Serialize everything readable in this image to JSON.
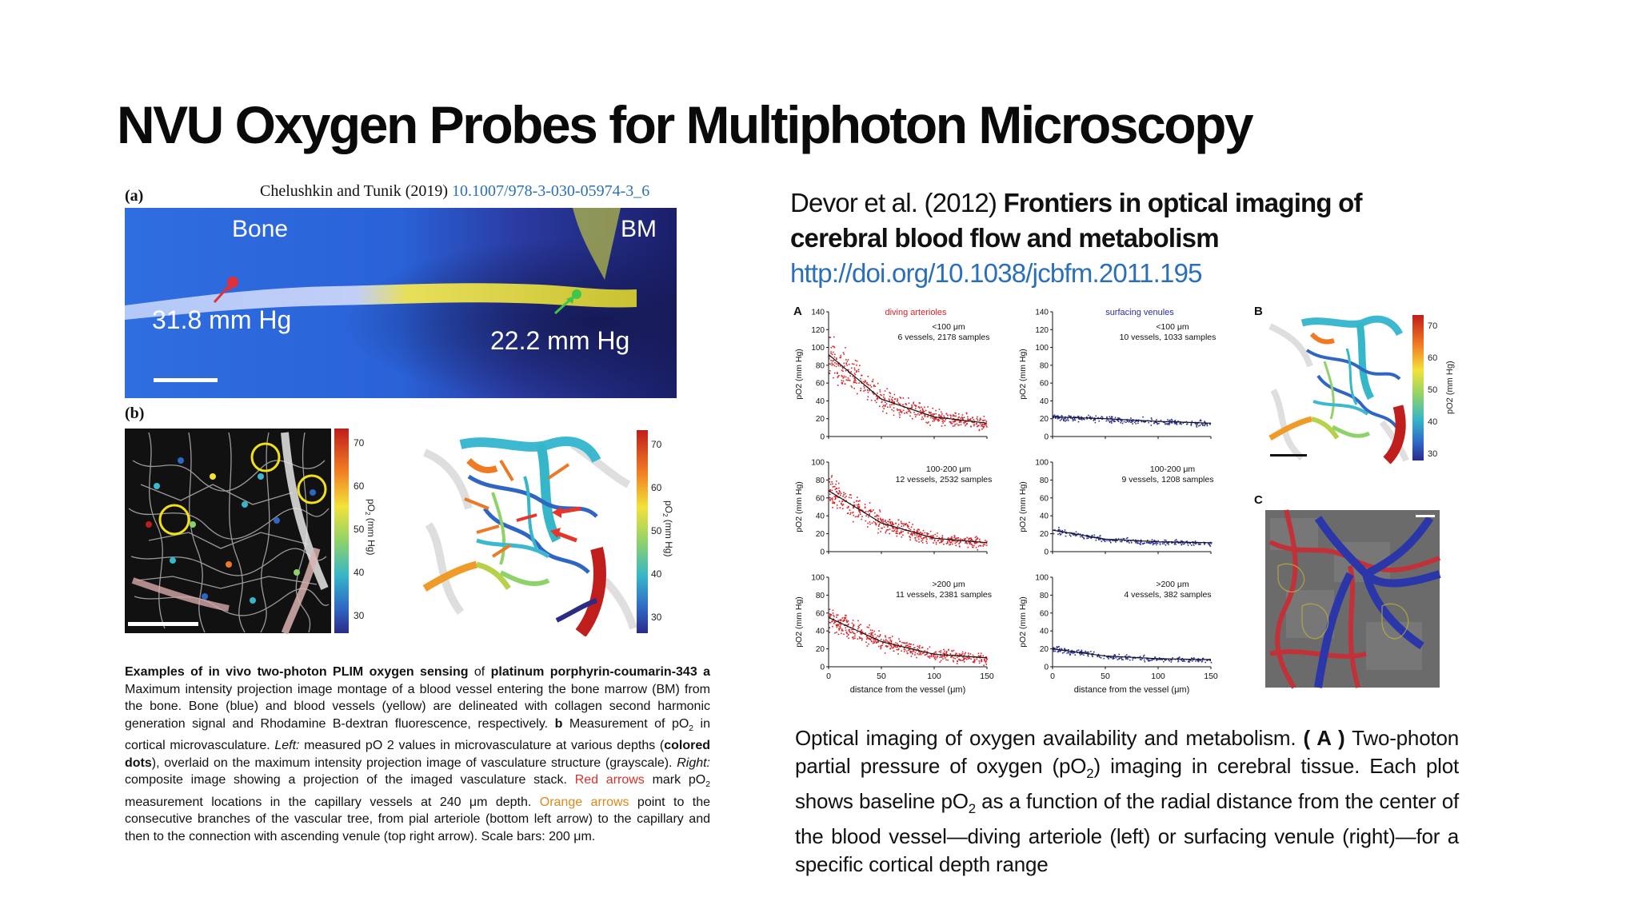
{
  "slide": {
    "title": "NVU Oxygen Probes for Multiphoton Microscopy"
  },
  "left_figure": {
    "citation_text": "Chelushkin and Tunik (2019) ",
    "citation_doi": "10.1007/978-3-030-05974-3_6",
    "panel_a_letter": "(a)",
    "panel_b_letter": "(b)",
    "panel_a": {
      "label_bone": "Bone",
      "label_bm": "BM",
      "value_red": "31.8 mm Hg",
      "value_green": "22.2 mm Hg"
    },
    "colorbar_ticks": [
      "70",
      "60",
      "50",
      "40",
      "30"
    ],
    "colorbar_label": "pO",
    "colorbar_label_sub": "2",
    "colorbar_label_unit": " (mm Hg)",
    "colors": {
      "red_dot": "#e0303a",
      "green_dot": "#3ec64a",
      "yellow_circle": "#f2e11a",
      "orange_arrow": "#ea7a26",
      "red_arrow": "#e6352b"
    }
  },
  "left_caption": {
    "bold_1": "Examples of in vivo two-photon PLIM oxygen sensing",
    "t1": " of ",
    "bold_2": "platinum porphyrin-coumarin-343",
    "t2": " ",
    "bold_a": "a",
    "t3": " Maximum intensity projection image montage of a blood vessel entering the bone marrow (BM) from the bone. Bone (blue) and blood vessels (yellow) are delineated with collagen second harmonic generation signal and Rhodamine B-dextran fluorescence, respectively. ",
    "bold_b": "b",
    "t4": " Measurement of pO",
    "t4_sub": "2",
    "t5": " in cortical microvasculature. ",
    "italic_left": "Left:",
    "t6": " measured pO 2 values in microvasculature at various depths (",
    "bold_dots": "colored dots",
    "t7": "), overlaid on the maximum intensity projection image of vasculature structure (grayscale). ",
    "italic_right": "Right:",
    "t8": " composite image showing a projection of the imaged vasculature stack. ",
    "red_arrows": "Red arrows",
    "t9": " mark pO",
    "t9_sub": "2",
    "t10": " measurement locations in the capillary vessels at 240 μm depth. ",
    "orange_arrows": "Orange arrows",
    "t11": " point to the consecutive branches of the vascular tree, from pial arteriole (bottom left arrow) to the capillary and then to the connection with ascending venule (top right arrow). Scale bars: 200 μm."
  },
  "right_citation": {
    "authors": "Devor et al. (2012) ",
    "title": "Frontiers in optical imaging of cerebral blood flow and metabolism",
    "link": "http://doi.org/10.1038/jcbfm.2011.195"
  },
  "right_figure": {
    "panel_a_letter": "A",
    "panel_b_letter": "B",
    "panel_c_letter": "C",
    "col_title_left": "diving arterioles",
    "col_title_right": "surfacing venules",
    "ylabel": "pO2 (mm Hg)",
    "xlabel": "distance from the vessel (μm)",
    "x_ticks": [
      "0",
      "50",
      "100",
      "150"
    ],
    "row1_y_ticks": [
      "0",
      "20",
      "40",
      "60",
      "80",
      "100",
      "120",
      "140"
    ],
    "rows23_y_ticks": [
      "0",
      "20",
      "40",
      "60",
      "80",
      "100"
    ],
    "colorbar_ticks": [
      "70",
      "60",
      "50",
      "40",
      "30"
    ],
    "colorbar_label": "pO2 (mm Hg)",
    "colors": {
      "arteriole": "#d8242a",
      "venule": "#2b2f9c",
      "fit": "#111111"
    }
  },
  "chart_data": [
    {
      "type": "scatter",
      "series": [
        {
          "name": "diving arterioles",
          "depth": "<100 μm",
          "vessels": "6 vessels, 2178 samples",
          "fit_x": [
            0,
            50,
            100,
            150
          ],
          "fit_y": [
            92,
            42,
            22,
            15
          ]
        }
      ],
      "xlabel": "distance from the vessel (μm)",
      "ylabel": "pO2 (mm Hg)",
      "xlim": [
        0,
        150
      ],
      "ylim": [
        0,
        140
      ]
    },
    {
      "type": "scatter",
      "series": [
        {
          "name": "surfacing venules",
          "depth": "<100 μm",
          "vessels": "10 vessels, 1033 samples",
          "fit_x": [
            0,
            50,
            100,
            150
          ],
          "fit_y": [
            22,
            20,
            17,
            15
          ]
        }
      ],
      "xlabel": "distance from the vessel (μm)",
      "ylabel": "pO2 (mm Hg)",
      "xlim": [
        0,
        150
      ],
      "ylim": [
        0,
        140
      ]
    },
    {
      "type": "scatter",
      "series": [
        {
          "name": "diving arterioles",
          "depth": "100-200 μm",
          "vessels": "12 vessels, 2532 samples",
          "fit_x": [
            0,
            50,
            100,
            150
          ],
          "fit_y": [
            68,
            32,
            15,
            10
          ]
        }
      ],
      "xlabel": "distance from the vessel (μm)",
      "ylabel": "pO2 (mm Hg)",
      "xlim": [
        0,
        150
      ],
      "ylim": [
        0,
        100
      ]
    },
    {
      "type": "scatter",
      "series": [
        {
          "name": "surfacing venules",
          "depth": "100-200 μm",
          "vessels": "9 vessels, 1208 samples",
          "fit_x": [
            0,
            50,
            100,
            150
          ],
          "fit_y": [
            24,
            14,
            11,
            10
          ]
        }
      ],
      "xlabel": "distance from the vessel (μm)",
      "ylabel": "pO2 (mm Hg)",
      "xlim": [
        0,
        150
      ],
      "ylim": [
        0,
        100
      ]
    },
    {
      "type": "scatter",
      "series": [
        {
          "name": "diving arterioles",
          "depth": ">200 μm",
          "vessels": "11 vessels, 2381 samples",
          "fit_x": [
            0,
            50,
            100,
            150
          ],
          "fit_y": [
            55,
            28,
            14,
            10
          ]
        }
      ],
      "xlabel": "distance from the vessel (μm)",
      "ylabel": "pO2 (mm Hg)",
      "xlim": [
        0,
        150
      ],
      "ylim": [
        0,
        100
      ]
    },
    {
      "type": "scatter",
      "series": [
        {
          "name": "surfacing venules",
          "depth": ">200 μm",
          "vessels": "4 vessels, 382 samples",
          "fit_x": [
            0,
            50,
            100,
            150
          ],
          "fit_y": [
            20,
            12,
            9,
            8
          ]
        }
      ],
      "xlabel": "distance from the vessel (μm)",
      "ylabel": "pO2 (mm Hg)",
      "xlim": [
        0,
        150
      ],
      "ylim": [
        0,
        100
      ]
    }
  ],
  "right_caption": {
    "t1": "Optical imaging of oxygen availability and metabolism. ",
    "bold_a": "( A )",
    "t2": " Two-photon partial pressure of oxygen (pO",
    "t2_sub": "2",
    "t3": ") imaging in cerebral tissue. Each plot shows baseline pO",
    "t3_sub": "2",
    "t4": " as a function of the radial distance from the center of the blood vessel—diving arteriole (left) or surfacing venule (right)—for a specific cortical depth range"
  }
}
